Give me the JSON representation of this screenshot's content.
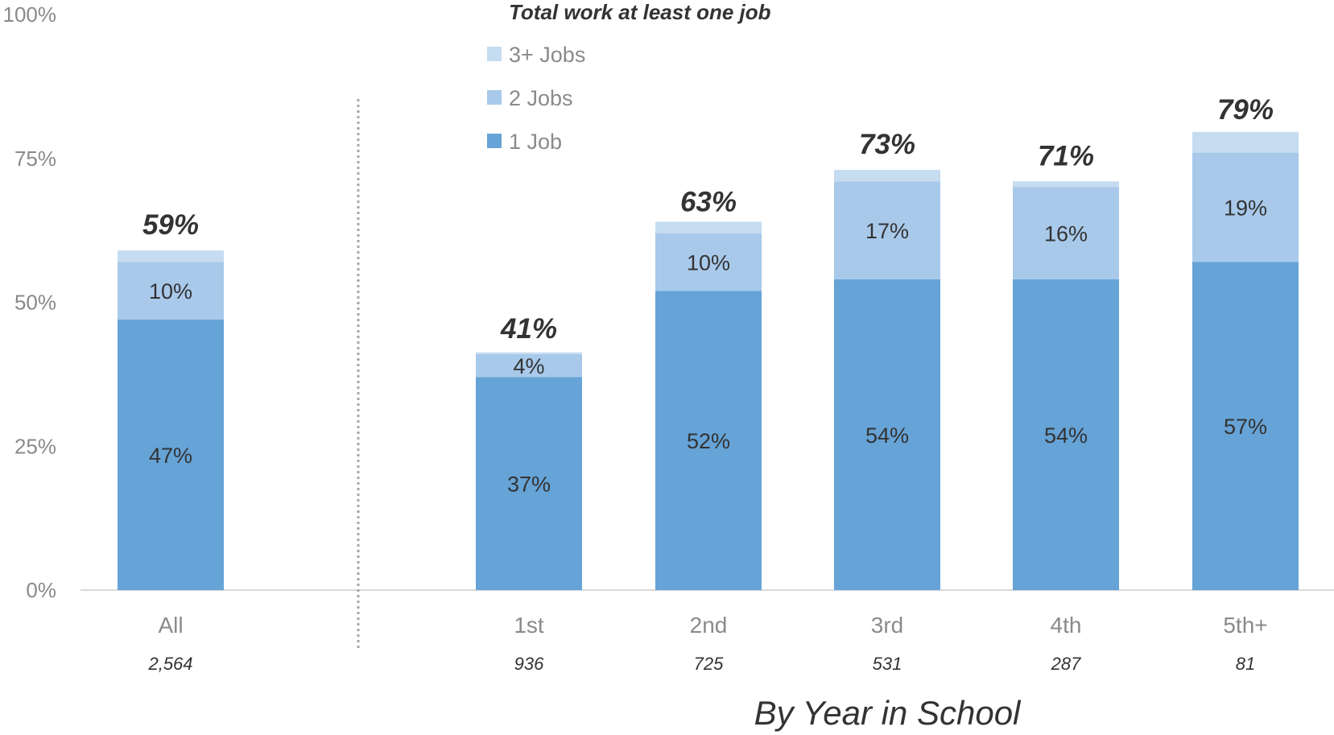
{
  "chart_data": {
    "type": "bar",
    "stacked": true,
    "categories": [
      "All",
      "1st",
      "2nd",
      "3rd",
      "4th",
      "5th+"
    ],
    "sample_sizes": [
      "2,564",
      "936",
      "725",
      "531",
      "287",
      "81"
    ],
    "series": [
      {
        "name": "1 Job",
        "values": [
          47,
          37,
          52,
          54,
          54,
          57
        ],
        "labels": [
          "47%",
          "37%",
          "52%",
          "54%",
          "54%",
          "57%"
        ],
        "color": "#66A3D7"
      },
      {
        "name": "2 Jobs",
        "values": [
          10,
          4,
          10,
          17,
          16,
          19
        ],
        "labels": [
          "10%",
          "4%",
          "10%",
          "17%",
          "16%",
          "19%"
        ],
        "color": "#A8C9EA"
      },
      {
        "name": "3+ Jobs",
        "values": [
          2,
          0.3,
          2,
          2,
          1,
          3.6
        ],
        "color": "#C5DCF1"
      }
    ],
    "totals": [
      59,
      41,
      63,
      73,
      71,
      79
    ],
    "total_labels": [
      "59%",
      "41%",
      "63%",
      "73%",
      "71%",
      "79%"
    ],
    "legend_title": "Total work at least one job",
    "xlabel": "By Year in School",
    "ylim": [
      0,
      100
    ],
    "y_ticks": [
      0,
      25,
      50,
      75,
      100
    ],
    "y_tick_labels": [
      "0%",
      "25%",
      "50%",
      "75%",
      "100%"
    ],
    "legend_placement": "top-center",
    "separator_after": "All",
    "grid": false
  }
}
